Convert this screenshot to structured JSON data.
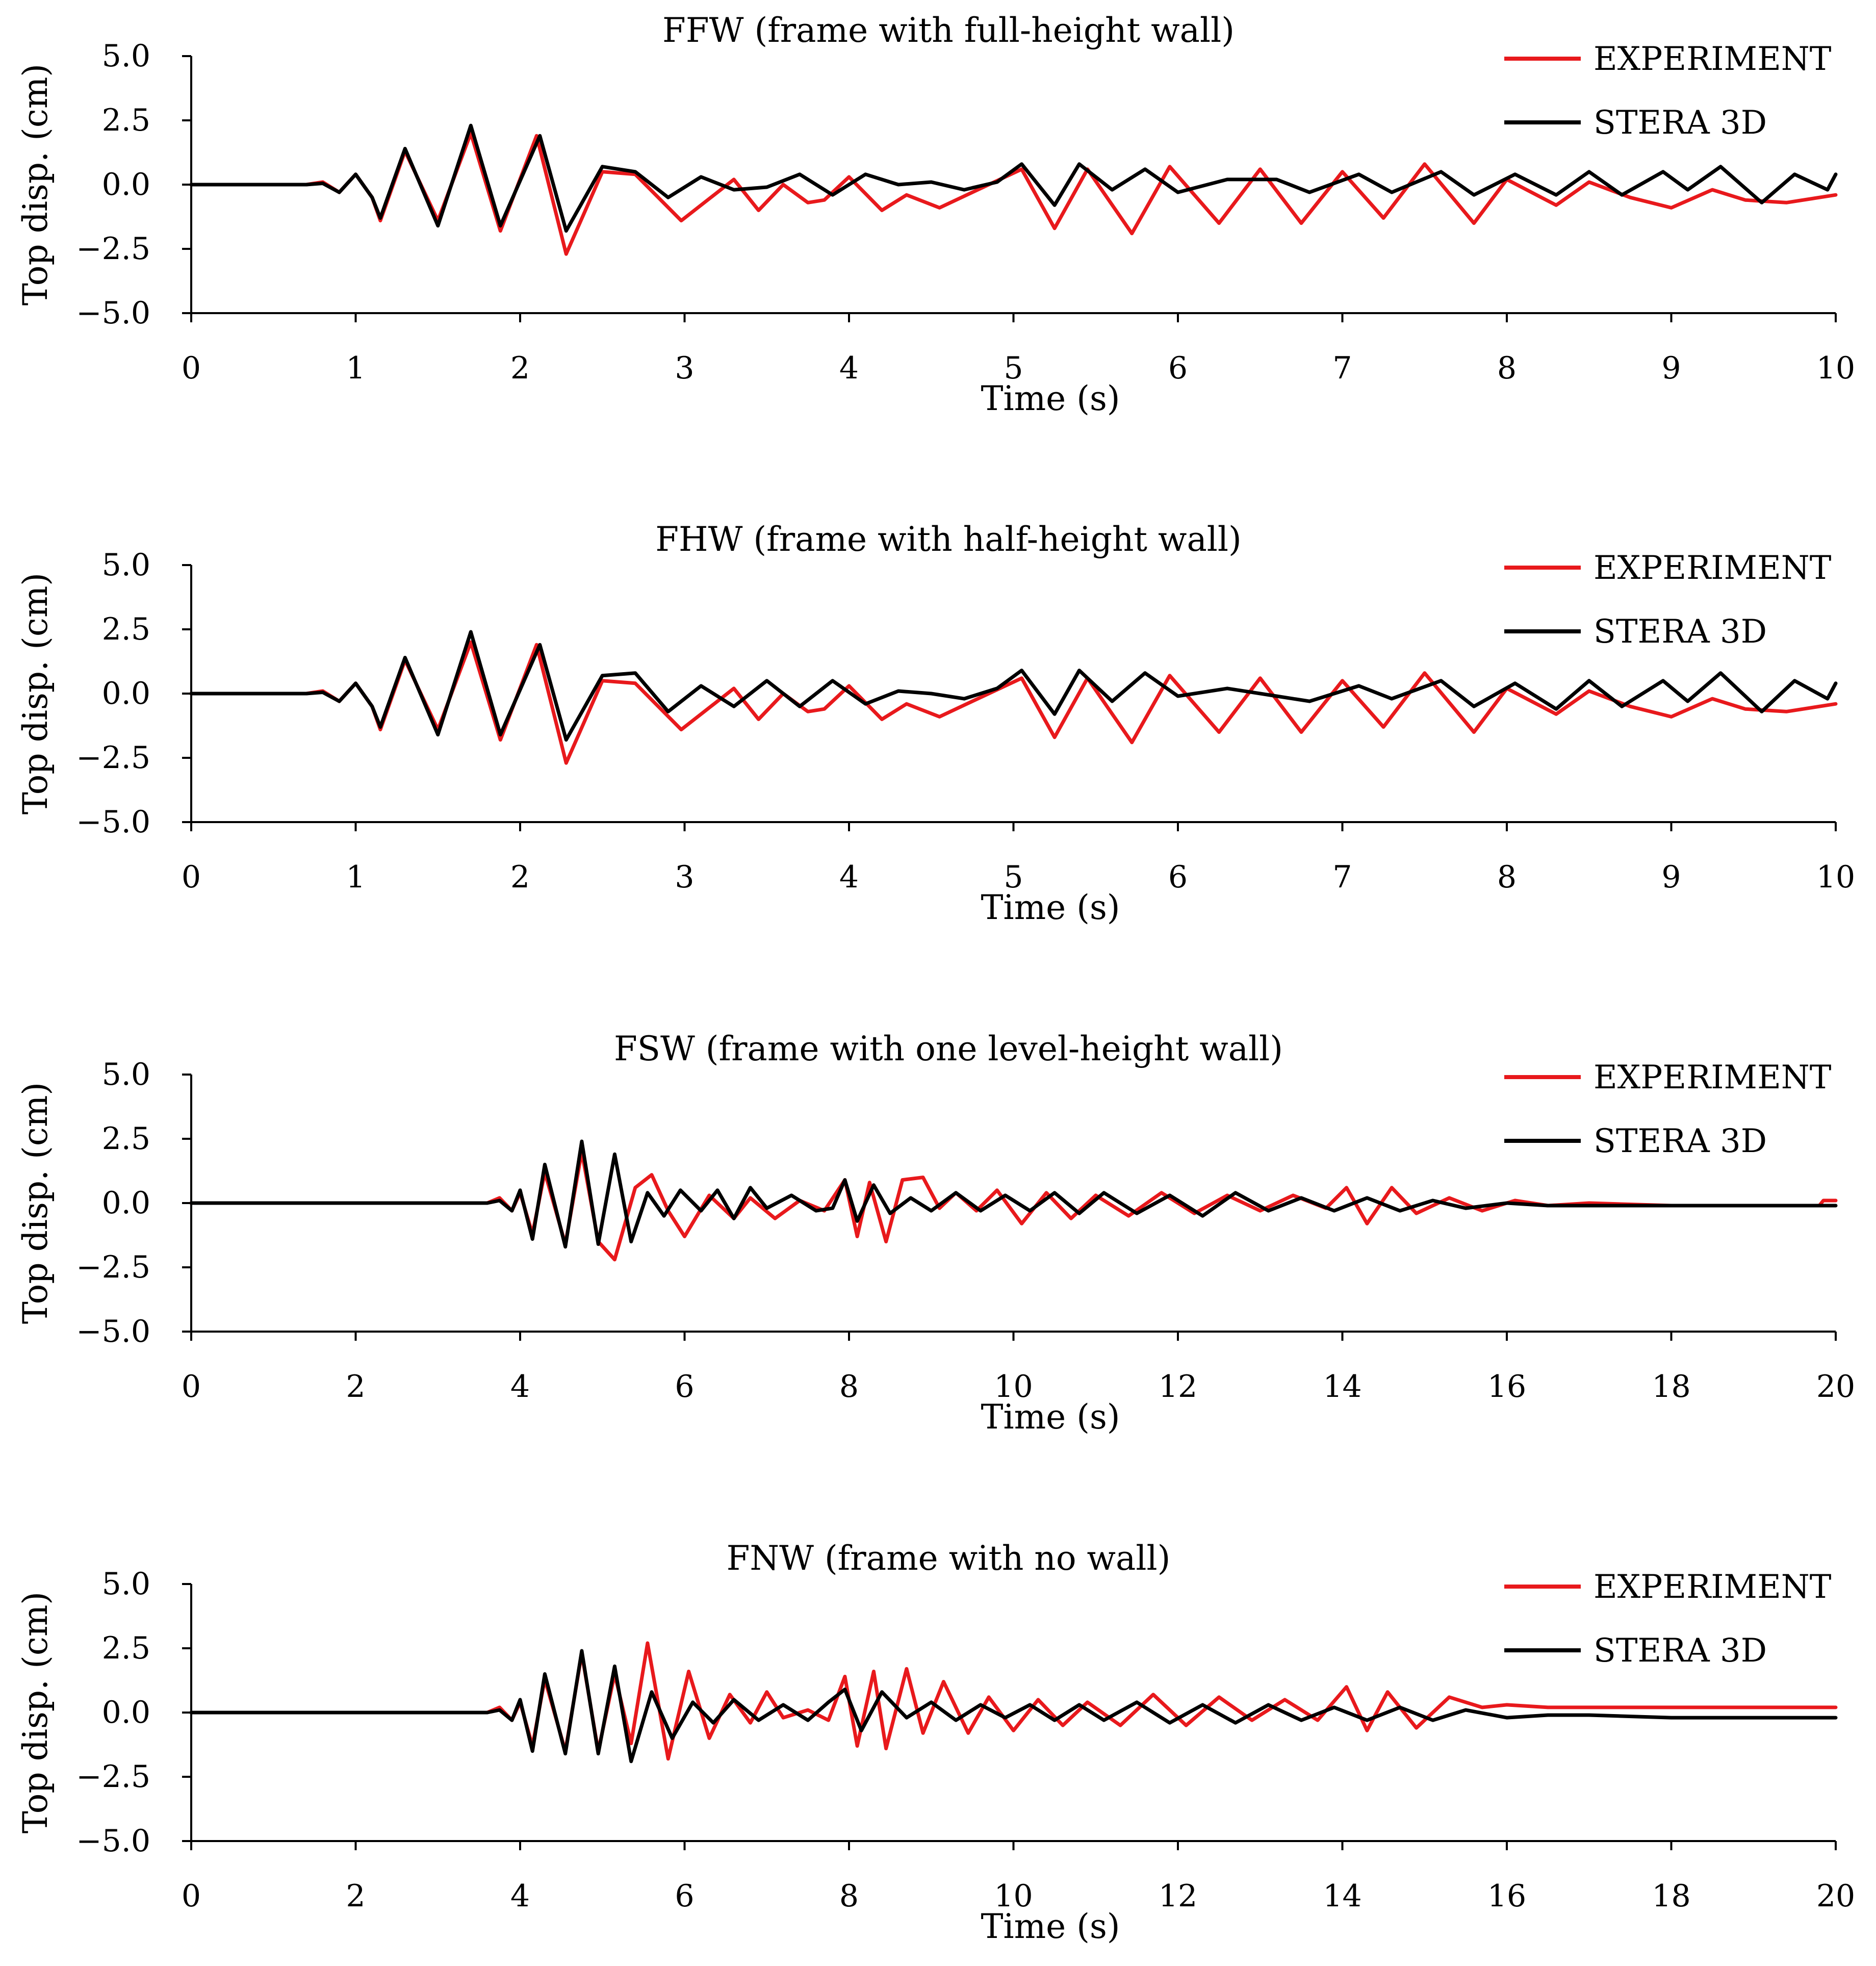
{
  "chart_data": [
    {
      "type": "line",
      "title": "FFW (frame with full-height wall)",
      "xlabel": "Time (s)",
      "ylabel": "Top disp. (cm)",
      "xlim": [
        0,
        10
      ],
      "ylim": [
        -5.0,
        5.0
      ],
      "xticks": [
        "0",
        "1",
        "2",
        "3",
        "4",
        "5",
        "6",
        "7",
        "8",
        "9",
        "10"
      ],
      "yticks": [
        "5.0",
        "2.5",
        "0.0",
        "−2.5",
        "−5.0"
      ],
      "legend_position": "top-right",
      "series": [
        {
          "name": "EXPERIMENT",
          "color": "#e8191c",
          "x": [
            0,
            0.7,
            0.8,
            0.9,
            1.0,
            1.1,
            1.15,
            1.3,
            1.5,
            1.7,
            1.88,
            2.1,
            2.28,
            2.5,
            2.7,
            2.98,
            3.3,
            3.45,
            3.6,
            3.75,
            3.85,
            4.0,
            4.2,
            4.35,
            4.55,
            4.75,
            5.05,
            5.25,
            5.45,
            5.72,
            5.95,
            6.25,
            6.5,
            6.75,
            7.0,
            7.25,
            7.5,
            7.8,
            8.0,
            8.3,
            8.5,
            8.75,
            9.0,
            9.25,
            9.45,
            9.7,
            10.0
          ],
          "values": [
            0,
            0,
            0.1,
            -0.3,
            0.4,
            -0.5,
            -1.4,
            1.3,
            -1.4,
            2.0,
            -1.8,
            1.9,
            -2.7,
            0.5,
            0.4,
            -1.4,
            0.2,
            -1.0,
            0.0,
            -0.7,
            -0.6,
            0.3,
            -1.0,
            -0.4,
            -0.9,
            -0.3,
            0.6,
            -1.7,
            0.6,
            -1.9,
            0.7,
            -1.5,
            0.6,
            -1.5,
            0.5,
            -1.3,
            0.8,
            -1.5,
            0.2,
            -0.8,
            0.1,
            -0.5,
            -0.9,
            -0.2,
            -0.6,
            -0.7,
            -0.4
          ]
        },
        {
          "name": "STERA 3D",
          "color": "#000000",
          "x": [
            0,
            0.7,
            0.8,
            0.9,
            1.0,
            1.1,
            1.15,
            1.3,
            1.5,
            1.7,
            1.88,
            2.12,
            2.28,
            2.5,
            2.7,
            2.9,
            3.1,
            3.3,
            3.5,
            3.7,
            3.9,
            4.1,
            4.3,
            4.5,
            4.7,
            4.9,
            5.05,
            5.25,
            5.4,
            5.6,
            5.8,
            6.0,
            6.3,
            6.6,
            6.8,
            7.1,
            7.3,
            7.6,
            7.8,
            8.05,
            8.3,
            8.5,
            8.7,
            8.95,
            9.1,
            9.3,
            9.55,
            9.75,
            9.95,
            10.0
          ],
          "values": [
            0,
            0,
            0.05,
            -0.3,
            0.4,
            -0.5,
            -1.3,
            1.4,
            -1.6,
            2.3,
            -1.6,
            1.9,
            -1.8,
            0.7,
            0.5,
            -0.5,
            0.3,
            -0.2,
            -0.1,
            0.4,
            -0.4,
            0.4,
            0.0,
            0.1,
            -0.2,
            0.1,
            0.8,
            -0.8,
            0.8,
            -0.2,
            0.6,
            -0.3,
            0.2,
            0.2,
            -0.3,
            0.4,
            -0.3,
            0.5,
            -0.4,
            0.4,
            -0.4,
            0.5,
            -0.4,
            0.5,
            -0.2,
            0.7,
            -0.7,
            0.4,
            -0.2,
            0.4
          ]
        }
      ]
    },
    {
      "type": "line",
      "title": "FHW (frame with half-height wall)",
      "xlabel": "Time (s)",
      "ylabel": "Top disp. (cm)",
      "xlim": [
        0,
        10
      ],
      "ylim": [
        -5.0,
        5.0
      ],
      "xticks": [
        "0",
        "1",
        "2",
        "3",
        "4",
        "5",
        "6",
        "7",
        "8",
        "9",
        "10"
      ],
      "yticks": [
        "5.0",
        "2.5",
        "0.0",
        "−2.5",
        "−5.0"
      ],
      "legend_position": "top-right",
      "series": [
        {
          "name": "EXPERIMENT",
          "color": "#e8191c",
          "x": [
            0,
            0.7,
            0.8,
            0.9,
            1.0,
            1.1,
            1.15,
            1.3,
            1.5,
            1.7,
            1.88,
            2.1,
            2.28,
            2.5,
            2.7,
            2.98,
            3.3,
            3.45,
            3.6,
            3.75,
            3.85,
            4.0,
            4.2,
            4.35,
            4.55,
            4.75,
            5.05,
            5.25,
            5.45,
            5.72,
            5.95,
            6.25,
            6.5,
            6.75,
            7.0,
            7.25,
            7.5,
            7.8,
            8.0,
            8.3,
            8.5,
            8.75,
            9.0,
            9.25,
            9.45,
            9.7,
            10.0
          ],
          "values": [
            0,
            0,
            0.1,
            -0.3,
            0.4,
            -0.5,
            -1.4,
            1.3,
            -1.4,
            2.0,
            -1.8,
            1.9,
            -2.7,
            0.5,
            0.4,
            -1.4,
            0.2,
            -1.0,
            0.0,
            -0.7,
            -0.6,
            0.3,
            -1.0,
            -0.4,
            -0.9,
            -0.3,
            0.6,
            -1.7,
            0.6,
            -1.9,
            0.7,
            -1.5,
            0.6,
            -1.5,
            0.5,
            -1.3,
            0.8,
            -1.5,
            0.2,
            -0.8,
            0.1,
            -0.5,
            -0.9,
            -0.2,
            -0.6,
            -0.7,
            -0.4
          ]
        },
        {
          "name": "STERA 3D",
          "color": "#000000",
          "x": [
            0,
            0.7,
            0.8,
            0.9,
            1.0,
            1.1,
            1.15,
            1.3,
            1.5,
            1.7,
            1.88,
            2.12,
            2.28,
            2.5,
            2.7,
            2.9,
            3.1,
            3.3,
            3.5,
            3.7,
            3.9,
            4.1,
            4.3,
            4.5,
            4.7,
            4.9,
            5.05,
            5.25,
            5.4,
            5.6,
            5.8,
            6.0,
            6.3,
            6.6,
            6.8,
            7.1,
            7.3,
            7.6,
            7.8,
            8.05,
            8.3,
            8.5,
            8.7,
            8.95,
            9.1,
            9.3,
            9.55,
            9.75,
            9.95,
            10.0
          ],
          "values": [
            0,
            0,
            0.05,
            -0.3,
            0.4,
            -0.5,
            -1.3,
            1.4,
            -1.6,
            2.4,
            -1.6,
            1.9,
            -1.8,
            0.7,
            0.8,
            -0.7,
            0.3,
            -0.5,
            0.5,
            -0.5,
            0.5,
            -0.4,
            0.1,
            0.0,
            -0.2,
            0.2,
            0.9,
            -0.8,
            0.9,
            -0.3,
            0.8,
            -0.1,
            0.2,
            -0.1,
            -0.3,
            0.3,
            -0.2,
            0.5,
            -0.5,
            0.4,
            -0.6,
            0.5,
            -0.5,
            0.5,
            -0.3,
            0.8,
            -0.7,
            0.5,
            -0.2,
            0.4
          ]
        }
      ]
    },
    {
      "type": "line",
      "title": "FSW (frame with one level-height wall)",
      "xlabel": "Time (s)",
      "ylabel": "Top disp. (cm)",
      "xlim": [
        0,
        20
      ],
      "ylim": [
        -5.0,
        5.0
      ],
      "xticks": [
        "0",
        "2",
        "4",
        "6",
        "8",
        "10",
        "12",
        "14",
        "16",
        "18",
        "20"
      ],
      "yticks": [
        "5.0",
        "2.5",
        "0.0",
        "−2.5",
        "−5.0"
      ],
      "legend_position": "top-right",
      "series": [
        {
          "name": "EXPERIMENT",
          "color": "#e8191c",
          "x": [
            0,
            3.6,
            3.75,
            3.9,
            4.0,
            4.15,
            4.3,
            4.55,
            4.75,
            4.95,
            5.15,
            5.4,
            5.6,
            5.8,
            6.0,
            6.3,
            6.6,
            6.8,
            7.1,
            7.4,
            7.7,
            7.95,
            8.1,
            8.25,
            8.45,
            8.65,
            8.9,
            9.1,
            9.3,
            9.55,
            9.8,
            10.1,
            10.4,
            10.7,
            11.0,
            11.4,
            11.8,
            12.2,
            12.6,
            13.0,
            13.4,
            13.8,
            14.05,
            14.3,
            14.6,
            14.9,
            15.3,
            15.7,
            16.1,
            16.5,
            17.0,
            18.0,
            19.0,
            19.8,
            19.85,
            20.0
          ],
          "values": [
            0,
            0,
            0.2,
            -0.3,
            0.4,
            -1.2,
            1.2,
            -1.6,
            2.0,
            -1.5,
            -2.2,
            0.6,
            1.1,
            -0.3,
            -1.3,
            0.3,
            -0.6,
            0.2,
            -0.6,
            0.1,
            -0.3,
            0.9,
            -1.3,
            0.8,
            -1.5,
            0.9,
            1.0,
            -0.2,
            0.4,
            -0.3,
            0.5,
            -0.8,
            0.4,
            -0.6,
            0.3,
            -0.5,
            0.4,
            -0.4,
            0.3,
            -0.3,
            0.3,
            -0.2,
            0.6,
            -0.8,
            0.6,
            -0.4,
            0.2,
            -0.3,
            0.1,
            -0.1,
            0.0,
            -0.1,
            -0.1,
            -0.1,
            0.1,
            0.1
          ]
        },
        {
          "name": "STERA 3D",
          "color": "#000000",
          "x": [
            0,
            3.6,
            3.75,
            3.9,
            4.0,
            4.15,
            4.3,
            4.55,
            4.75,
            4.95,
            5.15,
            5.35,
            5.55,
            5.75,
            5.95,
            6.2,
            6.4,
            6.6,
            6.8,
            7.0,
            7.3,
            7.6,
            7.8,
            7.95,
            8.1,
            8.3,
            8.5,
            8.75,
            9.0,
            9.3,
            9.6,
            9.9,
            10.2,
            10.5,
            10.8,
            11.1,
            11.5,
            11.9,
            12.3,
            12.7,
            13.1,
            13.5,
            13.9,
            14.3,
            14.7,
            15.1,
            15.5,
            16.0,
            16.5,
            17.0,
            18.0,
            19.0,
            20.0
          ],
          "values": [
            0,
            0,
            0.1,
            -0.3,
            0.5,
            -1.4,
            1.5,
            -1.7,
            2.4,
            -1.6,
            1.9,
            -1.5,
            0.4,
            -0.5,
            0.5,
            -0.3,
            0.5,
            -0.6,
            0.6,
            -0.2,
            0.3,
            -0.3,
            -0.2,
            0.9,
            -0.7,
            0.7,
            -0.4,
            0.2,
            -0.3,
            0.4,
            -0.3,
            0.3,
            -0.3,
            0.4,
            -0.4,
            0.4,
            -0.4,
            0.3,
            -0.5,
            0.4,
            -0.3,
            0.2,
            -0.3,
            0.2,
            -0.3,
            0.1,
            -0.2,
            0.0,
            -0.1,
            -0.1,
            -0.1,
            -0.1,
            -0.1
          ]
        }
      ]
    },
    {
      "type": "line",
      "title": "FNW (frame with no wall)",
      "xlabel": "Time (s)",
      "ylabel": "Top disp. (cm)",
      "xlim": [
        0,
        20
      ],
      "ylim": [
        -5.0,
        5.0
      ],
      "xticks": [
        "0",
        "2",
        "4",
        "6",
        "8",
        "10",
        "12",
        "14",
        "16",
        "18",
        "20"
      ],
      "yticks": [
        "5.0",
        "2.5",
        "0.0",
        "−2.5",
        "−5.0"
      ],
      "legend_position": "top-right",
      "series": [
        {
          "name": "EXPERIMENT",
          "color": "#e8191c",
          "x": [
            0.45,
            3.6,
            3.75,
            3.9,
            4.0,
            4.15,
            4.3,
            4.55,
            4.75,
            4.95,
            5.15,
            5.35,
            5.55,
            5.8,
            6.05,
            6.3,
            6.55,
            6.8,
            7.0,
            7.2,
            7.5,
            7.75,
            7.95,
            8.1,
            8.3,
            8.45,
            8.7,
            8.9,
            9.15,
            9.45,
            9.7,
            10.0,
            10.3,
            10.6,
            10.9,
            11.3,
            11.7,
            12.1,
            12.5,
            12.9,
            13.3,
            13.7,
            14.05,
            14.3,
            14.55,
            14.9,
            15.3,
            15.7,
            16.0,
            16.5,
            17.0,
            18.0,
            19.0,
            20.0
          ],
          "values": [
            0,
            0,
            0.2,
            -0.3,
            0.4,
            -1.3,
            1.3,
            -1.5,
            2.3,
            -1.5,
            1.5,
            -1.2,
            2.7,
            -1.8,
            1.6,
            -1.0,
            0.7,
            -0.4,
            0.8,
            -0.2,
            0.1,
            -0.3,
            1.4,
            -1.3,
            1.6,
            -1.4,
            1.7,
            -0.8,
            1.2,
            -0.8,
            0.6,
            -0.7,
            0.5,
            -0.5,
            0.4,
            -0.5,
            0.7,
            -0.5,
            0.6,
            -0.3,
            0.5,
            -0.3,
            1.0,
            -0.7,
            0.8,
            -0.6,
            0.6,
            0.2,
            0.3,
            0.2,
            0.2,
            0.2,
            0.2,
            0.2
          ]
        },
        {
          "name": "STERA 3D",
          "color": "#000000",
          "x": [
            0,
            3.6,
            3.75,
            3.9,
            4.0,
            4.15,
            4.3,
            4.55,
            4.75,
            4.95,
            5.15,
            5.35,
            5.6,
            5.85,
            6.1,
            6.35,
            6.6,
            6.9,
            7.2,
            7.5,
            7.75,
            7.95,
            8.15,
            8.4,
            8.7,
            9.0,
            9.3,
            9.6,
            9.9,
            10.2,
            10.5,
            10.8,
            11.1,
            11.5,
            11.9,
            12.3,
            12.7,
            13.1,
            13.5,
            13.9,
            14.3,
            14.7,
            15.1,
            15.5,
            16.0,
            16.5,
            17.0,
            18.0,
            19.0,
            20.0
          ],
          "values": [
            0,
            0,
            0.1,
            -0.3,
            0.5,
            -1.5,
            1.5,
            -1.6,
            2.4,
            -1.6,
            1.8,
            -1.9,
            0.8,
            -1.0,
            0.4,
            -0.4,
            0.5,
            -0.3,
            0.3,
            -0.3,
            0.4,
            0.9,
            -0.7,
            0.8,
            -0.2,
            0.4,
            -0.3,
            0.3,
            -0.2,
            0.3,
            -0.3,
            0.3,
            -0.3,
            0.4,
            -0.4,
            0.3,
            -0.4,
            0.3,
            -0.3,
            0.2,
            -0.3,
            0.2,
            -0.3,
            0.1,
            -0.2,
            -0.1,
            -0.1,
            -0.2,
            -0.2,
            -0.2
          ]
        }
      ]
    }
  ]
}
